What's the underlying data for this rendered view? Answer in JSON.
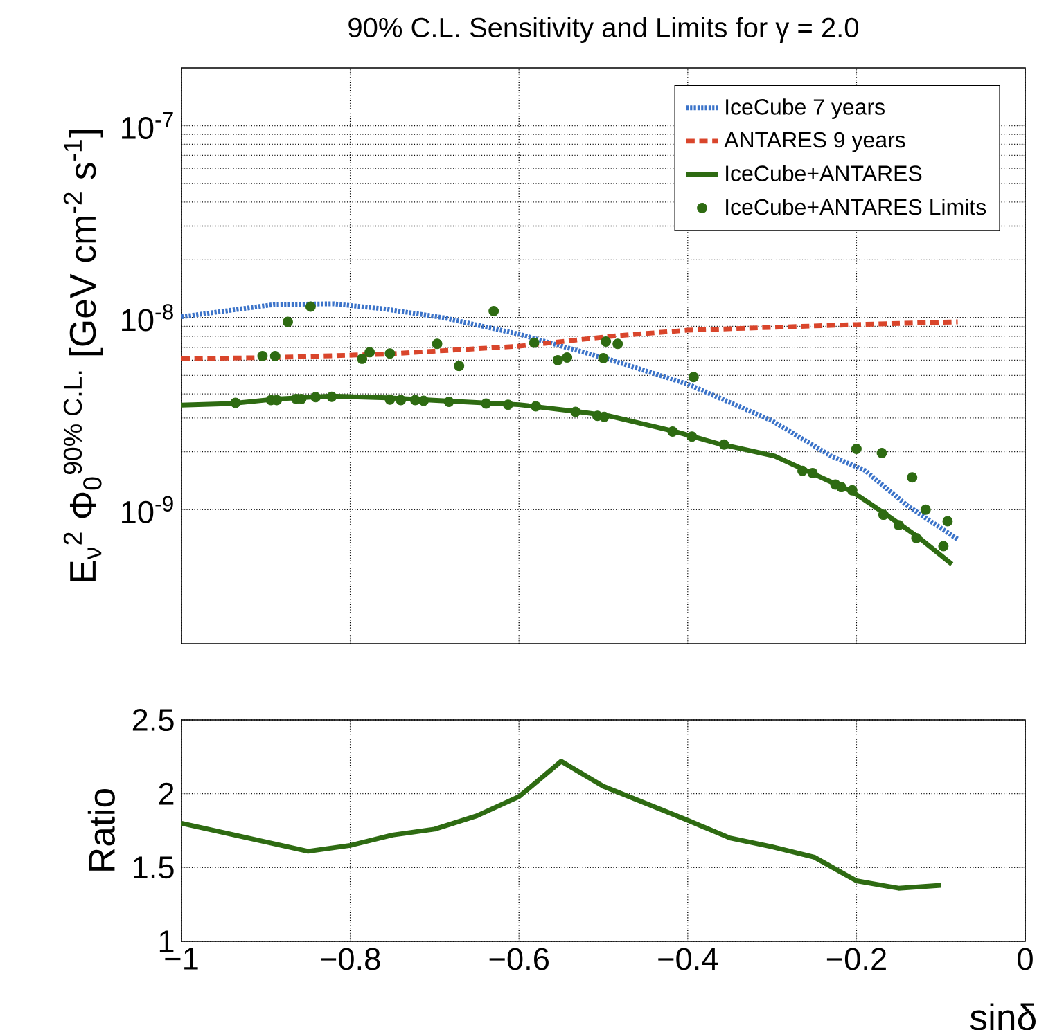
{
  "chart_data": [
    {
      "type": "line",
      "title": "90% C.L. Sensitivity and Limits for γ = 2.0",
      "ylabel": "E$_{ν}$$^{2}$ Φ$_{0}$$^{90% C.L.}$ [GeV cm$^{-2}$ s$^{-1}$]",
      "log": "y",
      "grid": true,
      "legend": "top right",
      "tick_labels": "y",
      "xlim": [
        -1,
        0
      ],
      "xticks": [
        {
          "value": -1,
          "label": null
        },
        {
          "value": -0.8,
          "label": null
        },
        {
          "value": -0.6,
          "label": null
        },
        {
          "value": -0.4,
          "label": null
        },
        {
          "value": -0.2,
          "label": null
        },
        {
          "value": 0,
          "label": null
        }
      ],
      "ylim": [
        2e-10,
        2e-07
      ],
      "yticks": [
        {
          "value": 1e-09,
          "label": "10$^{-9}$"
        },
        {
          "value": 1e-08,
          "label": "10$^{-8}$"
        },
        {
          "value": 1e-07,
          "label": "10$^{-7}$"
        }
      ],
      "series": [
        {
          "name": "IceCube 7 years",
          "type": "line",
          "line_style": "dotted",
          "color": "#3b73c9",
          "x": [
            -1,
            -0.95,
            -0.89,
            -0.82,
            -0.76,
            -0.69,
            -0.6,
            -0.49,
            -0.4,
            -0.3,
            -0.23,
            -0.19,
            -0.14,
            -0.08
          ],
          "values": [
            1.01e-08,
            1.08e-08,
            1.17e-08,
            1.18e-08,
            1.11e-08,
            1e-08,
            8.2e-09,
            6e-09,
            4.5e-09,
            2.9e-09,
            1.9e-09,
            1.6e-09,
            1.05e-09,
            7e-10
          ]
        },
        {
          "name": "ANTARES 9 years",
          "type": "line",
          "line_style": "dashed",
          "color": "#d9452b",
          "x": [
            -1,
            -0.89,
            -0.76,
            -0.6,
            -0.49,
            -0.4,
            -0.3,
            -0.2,
            -0.08
          ],
          "values": [
            6.1e-09,
            6.2e-09,
            6.45e-09,
            7.1e-09,
            8e-09,
            8.6e-09,
            8.9e-09,
            9.2e-09,
            9.5e-09
          ]
        },
        {
          "name": "IceCube+ANTARES",
          "type": "line",
          "line_style": "solid",
          "color": "#2e6b12",
          "x": [
            -1,
            -0.94,
            -0.887,
            -0.822,
            -0.756,
            -0.69,
            -0.6,
            -0.533,
            -0.494,
            -0.415,
            -0.363,
            -0.297,
            -0.264,
            -0.205,
            -0.166,
            -0.127,
            -0.087
          ],
          "values": [
            3.5e-09,
            3.57e-09,
            3.77e-09,
            3.9e-09,
            3.82e-09,
            3.69e-09,
            3.52e-09,
            3.25e-09,
            3.08e-09,
            2.55e-09,
            2.2e-09,
            1.9e-09,
            1.63e-09,
            1.24e-09,
            9.5e-10,
            7.2e-10,
            5.2e-10
          ]
        },
        {
          "name": "IceCube+ANTARES Limits",
          "type": "scatter",
          "color": "#2e6b12",
          "x": [
            -0.874,
            -0.847,
            -0.904,
            -0.889,
            -0.786,
            -0.777,
            -0.753,
            -0.697,
            -0.671,
            -0.63,
            -0.582,
            -0.554,
            -0.543,
            -0.5,
            -0.497,
            -0.483,
            -0.393,
            -0.2,
            -0.17,
            -0.134,
            -0.118,
            -0.092,
            -0.097,
            -0.936,
            -0.894,
            -0.887,
            -0.864,
            -0.858,
            -0.841,
            -0.822,
            -0.753,
            -0.74,
            -0.723,
            -0.713,
            -0.683,
            -0.639,
            -0.613,
            -0.58,
            -0.533,
            -0.507,
            -0.499,
            -0.418,
            -0.395,
            -0.357,
            -0.264,
            -0.252,
            -0.225,
            -0.218,
            -0.205,
            -0.168,
            -0.15,
            -0.129
          ],
          "values": [
            9.5e-09,
            1.14e-08,
            6.3e-09,
            6.3e-09,
            6.1e-09,
            6.6e-09,
            6.5e-09,
            7.3e-09,
            5.6e-09,
            1.08e-08,
            7.4e-09,
            6e-09,
            6.2e-09,
            6.15e-09,
            7.5e-09,
            7.3e-09,
            4.9e-09,
            2.07e-09,
            1.97e-09,
            1.47e-09,
            1e-09,
            8.7e-10,
            6.45e-10,
            3.6e-09,
            3.72e-09,
            3.72e-09,
            3.77e-09,
            3.77e-09,
            3.85e-09,
            3.87e-09,
            3.74e-09,
            3.72e-09,
            3.72e-09,
            3.69e-09,
            3.64e-09,
            3.57e-09,
            3.52e-09,
            3.45e-09,
            3.23e-09,
            3.08e-09,
            3.04e-09,
            2.55e-09,
            2.4e-09,
            2.18e-09,
            1.59e-09,
            1.55e-09,
            1.35e-09,
            1.31e-09,
            1.26e-09,
            9.4e-10,
            8.3e-10,
            7.1e-10
          ]
        }
      ]
    },
    {
      "type": "line",
      "xlabel": "sinδ",
      "ylabel": "Ratio",
      "grid": true,
      "xlim": [
        -1,
        0
      ],
      "xticks": [
        {
          "value": -1,
          "label": "−1"
        },
        {
          "value": -0.8,
          "label": "−0.8"
        },
        {
          "value": -0.6,
          "label": "−0.6"
        },
        {
          "value": -0.4,
          "label": "−0.4"
        },
        {
          "value": -0.2,
          "label": "−0.2"
        },
        {
          "value": 0,
          "label": "0"
        }
      ],
      "ylim": [
        1,
        2.5
      ],
      "yticks": [
        1,
        1.5,
        2,
        2.5
      ],
      "series": [
        {
          "line_style": "solid",
          "color": "#2e6b12",
          "x": [
            -1,
            -0.85,
            -0.8,
            -0.75,
            -0.7,
            -0.65,
            -0.6,
            -0.55,
            -0.5,
            -0.4,
            -0.35,
            -0.3,
            -0.25,
            -0.2,
            -0.15,
            -0.1
          ],
          "values": [
            1.8,
            1.61,
            1.65,
            1.72,
            1.76,
            1.85,
            1.98,
            2.22,
            2.05,
            1.82,
            1.7,
            1.64,
            1.57,
            1.41,
            1.36,
            1.38
          ]
        }
      ]
    }
  ]
}
